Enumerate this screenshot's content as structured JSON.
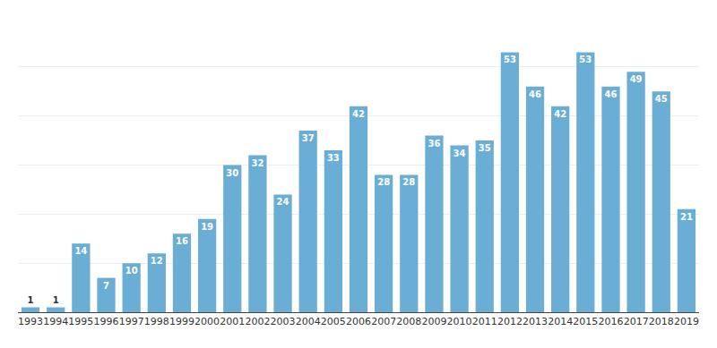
{
  "chart_data": {
    "type": "bar",
    "categories": [
      "1993",
      "1994",
      "1995",
      "1996",
      "1997",
      "1998",
      "1999",
      "2000",
      "2001",
      "2002",
      "2003",
      "2004",
      "2005",
      "2006",
      "2007",
      "2008",
      "2009",
      "2010",
      "2011",
      "2012",
      "2013",
      "2014",
      "2015",
      "2016",
      "2017",
      "2018",
      "2019"
    ],
    "values": [
      1,
      1,
      14,
      7,
      10,
      12,
      16,
      19,
      30,
      32,
      24,
      37,
      33,
      42,
      28,
      28,
      36,
      34,
      35,
      53,
      46,
      42,
      53,
      46,
      49,
      45,
      21
    ],
    "color": "#6aaed6",
    "ylim": [
      0,
      60
    ],
    "yticks": [
      0,
      10,
      20,
      30,
      40,
      50,
      60
    ],
    "grid": true,
    "data_labels": true,
    "tick_labels": "x"
  }
}
